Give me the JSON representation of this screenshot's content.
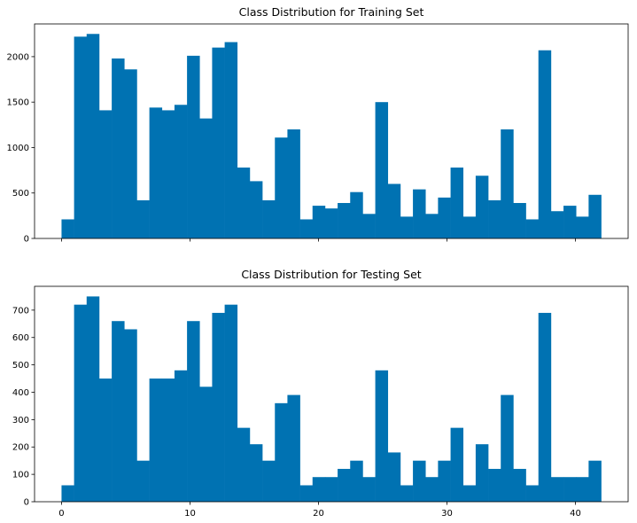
{
  "figure": {
    "bar_color": "#0072b2"
  },
  "chart_data": [
    {
      "type": "bar",
      "title": "Class Distribution for Training Set",
      "xlabel": "",
      "ylabel": "",
      "xlim": [
        -2.1,
        44.1
      ],
      "ylim": [
        0,
        2360
      ],
      "x_ticks": [
        0,
        10,
        20,
        30,
        40
      ],
      "x_tick_labels_visible": false,
      "y_ticks": [
        0,
        500,
        1000,
        1500,
        2000
      ],
      "y_tick_labels": [
        "0",
        "500",
        "1000",
        "1500",
        "2000"
      ],
      "bin_edges_range": [
        0,
        42
      ],
      "bins": 43,
      "grid": false,
      "values": [
        210,
        2220,
        2250,
        1410,
        1980,
        1860,
        420,
        1440,
        1410,
        1470,
        2010,
        1320,
        2100,
        2160,
        780,
        630,
        420,
        1110,
        1200,
        210,
        360,
        330,
        390,
        510,
        270,
        1500,
        600,
        240,
        540,
        270,
        450,
        780,
        240,
        690,
        420,
        1200,
        390,
        210,
        2070,
        300,
        360,
        240,
        480
      ]
    },
    {
      "type": "bar",
      "title": "Class Distribution for Testing Set",
      "xlabel": "",
      "ylabel": "",
      "xlim": [
        -2.1,
        44.1
      ],
      "ylim": [
        0,
        787
      ],
      "x_ticks": [
        0,
        10,
        20,
        30,
        40
      ],
      "x_tick_labels": [
        "0",
        "10",
        "20",
        "30",
        "40"
      ],
      "y_ticks": [
        0,
        100,
        200,
        300,
        400,
        500,
        600,
        700
      ],
      "y_tick_labels": [
        "0",
        "100",
        "200",
        "300",
        "400",
        "500",
        "600",
        "700"
      ],
      "bin_edges_range": [
        0,
        42
      ],
      "bins": 43,
      "grid": false,
      "values": [
        60,
        720,
        750,
        450,
        660,
        630,
        150,
        450,
        450,
        480,
        660,
        420,
        690,
        720,
        270,
        210,
        150,
        360,
        390,
        60,
        90,
        90,
        120,
        150,
        90,
        480,
        180,
        60,
        150,
        90,
        150,
        270,
        60,
        210,
        120,
        390,
        120,
        60,
        690,
        90,
        90,
        90,
        150
      ]
    }
  ]
}
